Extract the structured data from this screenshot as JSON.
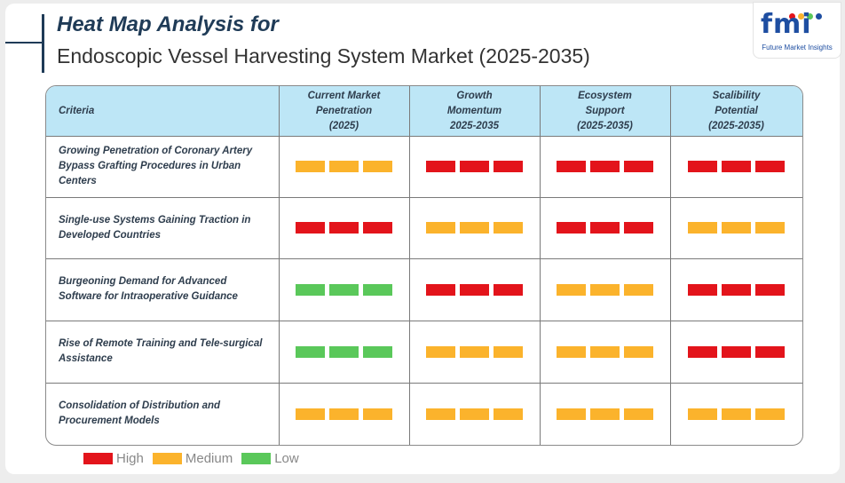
{
  "title": {
    "line1": "Heat Map Analysis for",
    "line2": "Endoscopic Vessel Harvesting System Market (2025-2035)"
  },
  "logo": {
    "mark": "fmi",
    "tagline": "Future Market Insights"
  },
  "colors": {
    "High": "#e3141b",
    "Medium": "#fbb32c",
    "Low": "#5ac85a",
    "header_bg": "#bde6f6"
  },
  "chart_data": {
    "type": "heatmap",
    "title": "Heat Map Analysis for Endoscopic Vessel Harvesting System Market (2025-2035)",
    "criteria_header": "Criteria",
    "columns": [
      {
        "label": "Current Market Penetration (2025)",
        "lines": [
          "Current Market",
          "Penetration",
          "(2025)"
        ]
      },
      {
        "label": "Growth Momentum 2025-2035",
        "lines": [
          "Growth",
          "Momentum",
          "2025-2035"
        ]
      },
      {
        "label": "Ecosystem Support (2025-2035)",
        "lines": [
          "Ecosystem",
          "Support",
          "(2025-2035)"
        ]
      },
      {
        "label": "Scalibility Potential (2025-2035)",
        "lines": [
          "Scalibility",
          "Potential",
          "(2025-2035)"
        ]
      }
    ],
    "rows": [
      {
        "criteria": "Growing Penetration of Coronary Artery Bypass Grafting Procedures in Urban Centers",
        "lines": [
          "Growing Penetration of Coronary Artery",
          "Bypass Grafting Procedures in Urban",
          "Centers"
        ],
        "values": [
          "Medium",
          "High",
          "High",
          "High"
        ]
      },
      {
        "criteria": "Single-use Systems Gaining Traction in Developed Countries",
        "lines": [
          "Single-use Systems Gaining Traction in",
          "Developed Countries"
        ],
        "values": [
          "High",
          "Medium",
          "High",
          "Medium"
        ]
      },
      {
        "criteria": "Burgeoning Demand for Advanced Software for Intraoperative Guidance",
        "lines": [
          "Burgeoning Demand for Advanced",
          "Software for Intraoperative Guidance"
        ],
        "values": [
          "Low",
          "High",
          "Medium",
          "High"
        ]
      },
      {
        "criteria": "Rise of Remote Training and Tele-surgical Assistance",
        "lines": [
          "Rise of Remote Training and Tele-surgical",
          "Assistance"
        ],
        "values": [
          "Low",
          "Medium",
          "Medium",
          "High"
        ]
      },
      {
        "criteria": "Consolidation of Distribution and Procurement Models",
        "lines": [
          "Consolidation of Distribution and",
          "Procurement Models"
        ],
        "values": [
          "Medium",
          "Medium",
          "Medium",
          "Medium"
        ]
      }
    ],
    "legend": [
      "High",
      "Medium",
      "Low"
    ],
    "legend_placement": "bottom-left"
  }
}
